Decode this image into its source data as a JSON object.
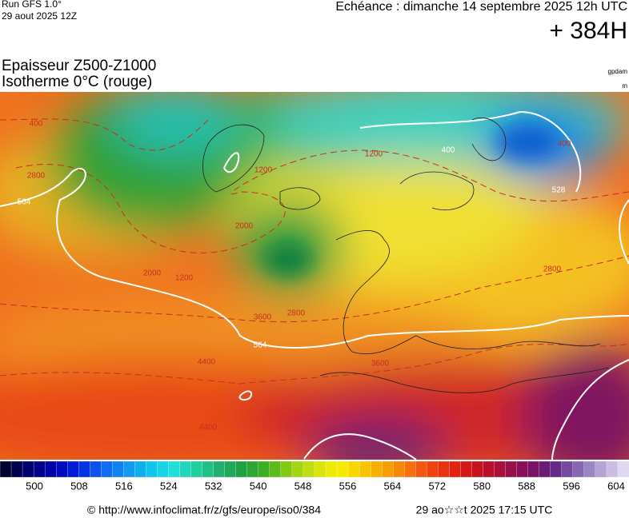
{
  "header": {
    "run": "Run GFS 1.0°",
    "run_date": "29 aout 2025 12Z",
    "valid": "Echéance : dimanche 14 septembre 2025 12h UTC",
    "lead": "+ 384H"
  },
  "legend": {
    "title_line1": "Epaisseur Z500-Z1000",
    "title_line2": "Isotherme 0°C (rouge)",
    "unit_thickness": "gpdam",
    "unit_iso": "m"
  },
  "colorbar": {
    "ticks": [
      500,
      508,
      516,
      524,
      532,
      540,
      548,
      556,
      564,
      572,
      580,
      588,
      596,
      604
    ]
  },
  "contour_labels": [
    "564",
    "564",
    "528",
    "400",
    "400",
    "400",
    "1200",
    "1200",
    "1200",
    "2000",
    "2000",
    "2800",
    "2800",
    "2800",
    "3600",
    "3600",
    "4400",
    "4400"
  ],
  "footer": {
    "source": "© http://www.infoclimat.fr/z/gfs/europe/iso0/384",
    "generated": "29 ao☆☆t 2025 17:15 UTC"
  }
}
